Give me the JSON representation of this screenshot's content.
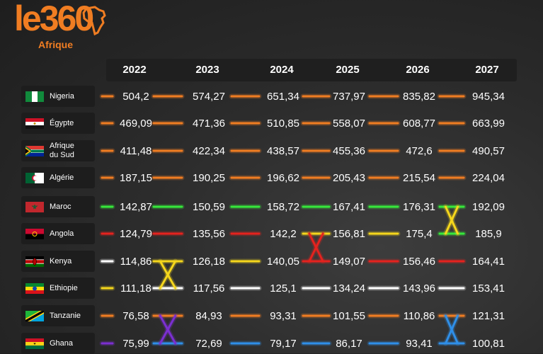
{
  "logo": {
    "main": "le360",
    "sub": "Afrique"
  },
  "chart_data": {
    "type": "table",
    "years": [
      "2022",
      "2023",
      "2024",
      "2025",
      "2026",
      "2027"
    ],
    "rows": [
      {
        "country": "Nigeria",
        "flag": "nigeria-flag",
        "values": [
          "504,2",
          "574,27",
          "651,34",
          "737,97",
          "835,82",
          "945,34"
        ],
        "colors": [
          "#f07d22",
          "#f07d22",
          "#f07d22",
          "#f07d22",
          "#f07d22",
          "#f07d22"
        ]
      },
      {
        "country": "Égypte",
        "flag": "egypt-flag",
        "values": [
          "469,09",
          "471,36",
          "510,85",
          "558,07",
          "608,77",
          "663,99"
        ],
        "colors": [
          "#f07d22",
          "#f07d22",
          "#f07d22",
          "#f07d22",
          "#f07d22",
          "#f07d22"
        ]
      },
      {
        "country": "Afrique du Sud",
        "flag": "south-africa-flag",
        "values": [
          "411,48",
          "422,34",
          "438,57",
          "455,36",
          "472,6",
          "490,57"
        ],
        "colors": [
          "#f07d22",
          "#f07d22",
          "#f07d22",
          "#f07d22",
          "#f07d22",
          "#f07d22"
        ]
      },
      {
        "country": "Algérie",
        "flag": "algeria-flag",
        "values": [
          "187,15",
          "190,25",
          "196,62",
          "205,43",
          "215,54",
          "224,04"
        ],
        "colors": [
          "#f07d22",
          "#f07d22",
          "#f07d22",
          "#f07d22",
          "#f07d22",
          "#f07d22"
        ]
      },
      {
        "country": "Maroc",
        "flag": "morocco-flag",
        "values": [
          "142,87",
          "150,59",
          "158,72",
          "167,41",
          "176,31",
          "192,09"
        ],
        "colors": [
          "#36e83b",
          "#36e83b",
          "#36e83b",
          "#36e83b",
          "#36e83b",
          "#36e83b"
        ]
      },
      {
        "country": "Angola",
        "flag": "angola-flag",
        "values": [
          "124,79",
          "135,56",
          "142,2",
          "156,81",
          "175,4",
          "185,9"
        ],
        "colors": [
          "#e5221e",
          "#e5221e",
          "#e5221e",
          "#f5d61c",
          "#f5d61c",
          "#36e83b"
        ]
      },
      {
        "country": "Kenya",
        "flag": "kenya-flag",
        "values": [
          "114,86",
          "126,18",
          "140,05",
          "149,07",
          "156,46",
          "164,41"
        ],
        "colors": [
          "#ffffff",
          "#f5d61c",
          "#f5d61c",
          "#e5221e",
          "#e5221e",
          "#e5221e"
        ]
      },
      {
        "country": "Ethiopie",
        "flag": "ethiopia-flag",
        "values": [
          "111,18",
          "117,56",
          "125,1",
          "134,24",
          "143,96",
          "153,41"
        ],
        "colors": [
          "#f5d61c",
          "#ffffff",
          "#ffffff",
          "#ffffff",
          "#ffffff",
          "#ffffff"
        ]
      },
      {
        "country": "Tanzanie",
        "flag": "tanzania-flag",
        "values": [
          "76,58",
          "84,93",
          "93,31",
          "101,55",
          "110,86",
          "121,31"
        ],
        "colors": [
          "#f07d22",
          "#f07d22",
          "#f07d22",
          "#f07d22",
          "#f07d22",
          "#f07d22"
        ]
      },
      {
        "country": "Ghana",
        "flag": "ghana-flag",
        "values": [
          "75,99",
          "72,69",
          "79,17",
          "86,17",
          "93,41",
          "100,81"
        ],
        "colors": [
          "#7b2fd1",
          "#2f8fe8",
          "#2f8fe8",
          "#2f8fe8",
          "#2f8fe8",
          "#2f8fe8"
        ]
      }
    ],
    "crossings": [
      {
        "between_years": [
          "2022",
          "2023"
        ],
        "rows": [
          "Kenya",
          "Ethiopie"
        ],
        "color": "#f5d61c"
      },
      {
        "between_years": [
          "2024",
          "2025"
        ],
        "rows": [
          "Angola",
          "Kenya"
        ],
        "color": "#e5221e"
      },
      {
        "between_years": [
          "2026",
          "2027"
        ],
        "rows": [
          "Maroc",
          "Angola"
        ],
        "color": "#f5d61c"
      },
      {
        "between_years": [
          "2022",
          "2023"
        ],
        "rows": [
          "Ghana",
          "Tanzanie"
        ],
        "color": "#7b2fd1"
      },
      {
        "between_years": [
          "2026",
          "2027"
        ],
        "rows": [
          "Ghana",
          "Tanzanie"
        ],
        "color": "#2f8fe8"
      }
    ]
  }
}
